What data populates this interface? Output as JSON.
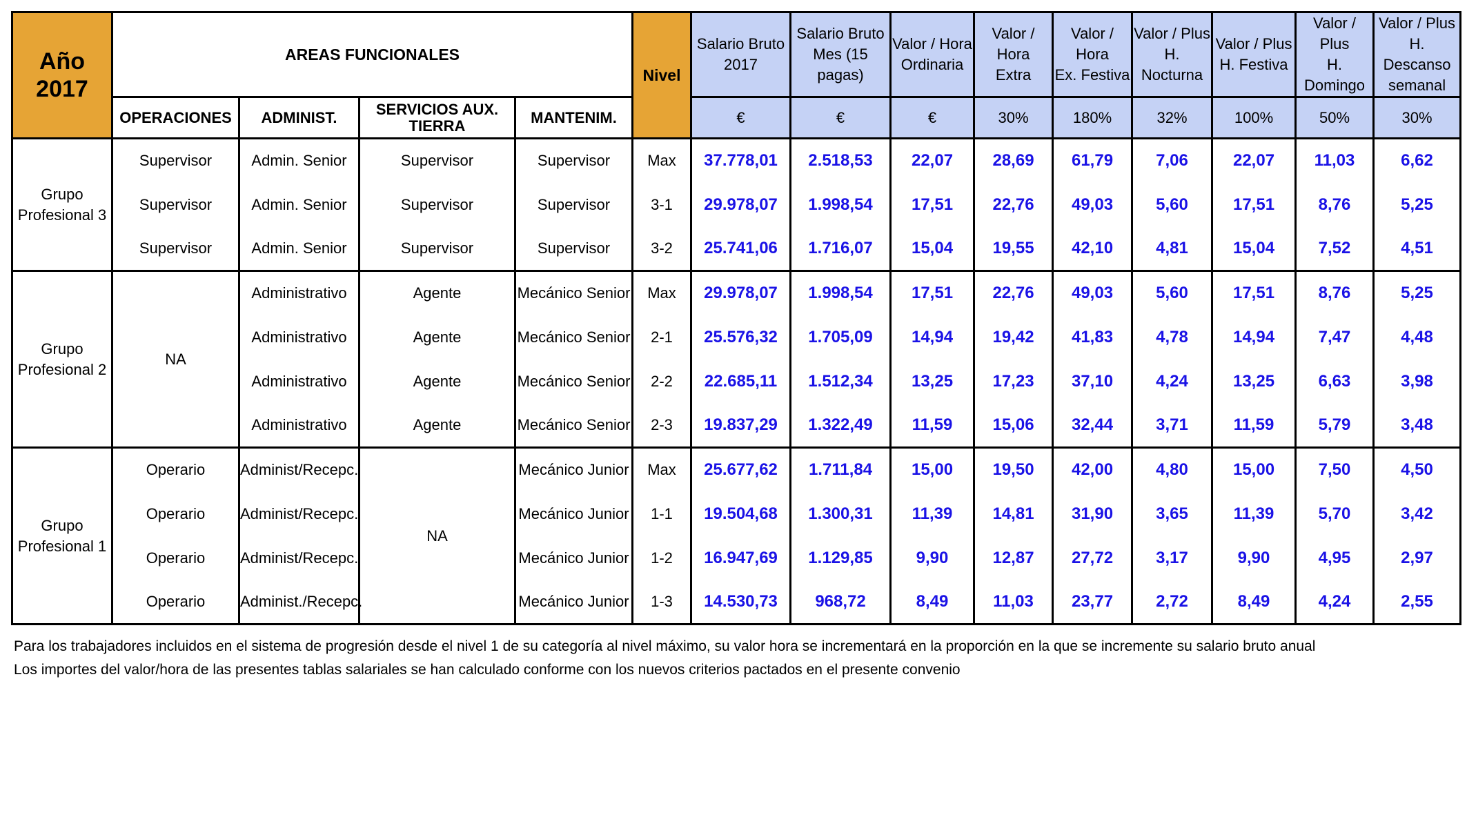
{
  "header": {
    "year_label": "Año",
    "year_value": "2017",
    "areas_title": "AREAS FUNCIONALES",
    "nivel": "Nivel",
    "areas": [
      "OPERACIONES",
      "ADMINIST.",
      "SERVICIOS AUX. TIERRA",
      "MANTENIM."
    ],
    "value_cols": [
      {
        "line1": "Salario Bruto",
        "line2": "2017",
        "unit": "€"
      },
      {
        "line1": "Salario Bruto",
        "line2": "Mes (15 pagas)",
        "unit": "€"
      },
      {
        "line1": "Valor / Hora",
        "line2": "Ordinaria",
        "unit": "€"
      },
      {
        "line1": "Valor / Hora",
        "line2": "Extra",
        "unit": "30%"
      },
      {
        "line1": "Valor / Hora",
        "line2": "Ex. Festiva",
        "unit": "180%"
      },
      {
        "line1": "Valor / Plus",
        "line2": "H. Nocturna",
        "unit": "32%"
      },
      {
        "line1": "Valor / Plus",
        "line2": "H. Festiva",
        "unit": "100%"
      },
      {
        "line1": "Valor / Plus",
        "line2": "H. Domingo",
        "unit": "50%"
      },
      {
        "line1": "Valor / Plus",
        "line2": "H. Descanso",
        "line3": "semanal",
        "unit": "30%"
      }
    ]
  },
  "groups": [
    {
      "name_line1": "Grupo",
      "name_line2": "Profesional 3",
      "rows": [
        {
          "op": "Supervisor",
          "adm": "Admin. Senior",
          "serv": "Supervisor",
          "mant": "Supervisor",
          "nivel": "Max",
          "vals": [
            "37.778,01",
            "2.518,53",
            "22,07",
            "28,69",
            "61,79",
            "7,06",
            "22,07",
            "11,03",
            "6,62"
          ]
        },
        {
          "op": "Supervisor",
          "adm": "Admin. Senior",
          "serv": "Supervisor",
          "mant": "Supervisor",
          "nivel": "3-1",
          "vals": [
            "29.978,07",
            "1.998,54",
            "17,51",
            "22,76",
            "49,03",
            "5,60",
            "17,51",
            "8,76",
            "5,25"
          ]
        },
        {
          "op": "Supervisor",
          "adm": "Admin. Senior",
          "serv": "Supervisor",
          "mant": "Supervisor",
          "nivel": "3-2",
          "vals": [
            "25.741,06",
            "1.716,07",
            "15,04",
            "19,55",
            "42,10",
            "4,81",
            "15,04",
            "7,52",
            "4,51"
          ]
        }
      ]
    },
    {
      "name_line1": "Grupo",
      "name_line2": "Profesional 2",
      "op_merged": "NA",
      "rows": [
        {
          "adm": "Administrativo",
          "serv": "Agente",
          "mant": "Mecánico Senior",
          "nivel": "Max",
          "vals": [
            "29.978,07",
            "1.998,54",
            "17,51",
            "22,76",
            "49,03",
            "5,60",
            "17,51",
            "8,76",
            "5,25"
          ]
        },
        {
          "adm": "Administrativo",
          "serv": "Agente",
          "mant": "Mecánico Senior",
          "nivel": "2-1",
          "vals": [
            "25.576,32",
            "1.705,09",
            "14,94",
            "19,42",
            "41,83",
            "4,78",
            "14,94",
            "7,47",
            "4,48"
          ]
        },
        {
          "adm": "Administrativo",
          "serv": "Agente",
          "mant": "Mecánico Senior",
          "nivel": "2-2",
          "vals": [
            "22.685,11",
            "1.512,34",
            "13,25",
            "17,23",
            "37,10",
            "4,24",
            "13,25",
            "6,63",
            "3,98"
          ]
        },
        {
          "adm": "Administrativo",
          "serv": "Agente",
          "mant": "Mecánico Senior",
          "nivel": "2-3",
          "vals": [
            "19.837,29",
            "1.322,49",
            "11,59",
            "15,06",
            "32,44",
            "3,71",
            "11,59",
            "5,79",
            "3,48"
          ]
        }
      ]
    },
    {
      "name_line1": "Grupo",
      "name_line2": "Profesional 1",
      "serv_merged": "NA",
      "rows": [
        {
          "op": "Operario",
          "adm": "Administ/Recepc.",
          "mant": "Mecánico Junior",
          "nivel": "Max",
          "vals": [
            "25.677,62",
            "1.711,84",
            "15,00",
            "19,50",
            "42,00",
            "4,80",
            "15,00",
            "7,50",
            "4,50"
          ]
        },
        {
          "op": "Operario",
          "adm": "Administ/Recepc.",
          "mant": "Mecánico Junior",
          "nivel": "1-1",
          "vals": [
            "19.504,68",
            "1.300,31",
            "11,39",
            "14,81",
            "31,90",
            "3,65",
            "11,39",
            "5,70",
            "3,42"
          ]
        },
        {
          "op": "Operario",
          "adm": "Administ/Recepc.",
          "mant": "Mecánico Junior",
          "nivel": "1-2",
          "vals": [
            "16.947,69",
            "1.129,85",
            "9,90",
            "12,87",
            "27,72",
            "3,17",
            "9,90",
            "4,95",
            "2,97"
          ]
        },
        {
          "op": "Operario",
          "adm": "Administ./Recepc.",
          "mant": "Mecánico Junior",
          "nivel": "1-3",
          "vals": [
            "14.530,73",
            "968,72",
            "8,49",
            "11,03",
            "23,77",
            "2,72",
            "8,49",
            "4,24",
            "2,55"
          ]
        }
      ]
    }
  ],
  "notes": [
    "Para los trabajadores incluidos en el sistema de progresión desde el nivel 1 de su categoría al nivel máximo, su valor hora se incrementará en la proporción en la que se incremente su salario bruto anual",
    "Los importes del valor/hora de las presentes tablas salariales se han calculado conforme con los nuevos criterios pactados en el presente convenio"
  ]
}
